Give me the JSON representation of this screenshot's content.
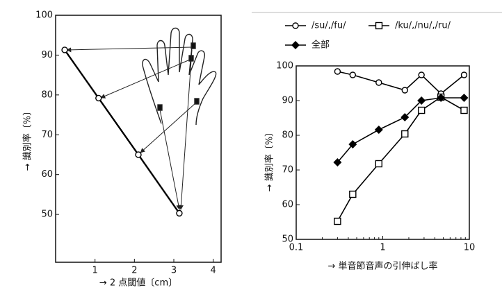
{
  "chart_data": [
    {
      "type": "line",
      "x_label": "→ 2 点閾値〔cm〕",
      "y_label": "→ 識別率〔%〕",
      "x": [
        0.23,
        1.09,
        2.1,
        3.14
      ],
      "values": [
        91.3,
        79.2,
        65,
        50.3
      ],
      "color": "#000000",
      "marker": "circle",
      "xlim": [
        0,
        4.2
      ],
      "xticks": [
        1,
        2,
        3,
        4
      ],
      "ylim": [
        38,
        100
      ],
      "yticks": [
        50,
        60,
        70,
        80,
        90,
        100
      ]
    },
    {
      "type": "line",
      "x_label": "→ 単音節音声の引伸ばし率",
      "y_label": "→ 識別率〔%〕",
      "x": [
        0.3,
        0.45,
        0.9,
        1.8,
        2.8,
        4.7,
        8.7
      ],
      "xscale": "log",
      "xlim": [
        0.1,
        10
      ],
      "xticks": [
        0.1,
        1,
        10
      ],
      "ylim": [
        50,
        100
      ],
      "yticks": [
        50,
        60,
        70,
        80,
        90,
        100
      ],
      "series": [
        {
          "name": "/su/,/fu/",
          "color": "#000000",
          "marker": "circle",
          "values": [
            98.4,
            97.4,
            95.2,
            93,
            97.4,
            92,
            97.4
          ]
        },
        {
          "name": "/ku/,/nu/,/ru/",
          "color": "#000000",
          "marker": "square",
          "values": [
            55.2,
            63,
            71.8,
            80.4,
            87.2,
            91,
            87.2
          ]
        },
        {
          "name": "全部",
          "color": "#000000",
          "marker": "diamond",
          "values": [
            72.2,
            77.4,
            81.6,
            85.2,
            90,
            90.8,
            90.8
          ]
        }
      ]
    }
  ]
}
